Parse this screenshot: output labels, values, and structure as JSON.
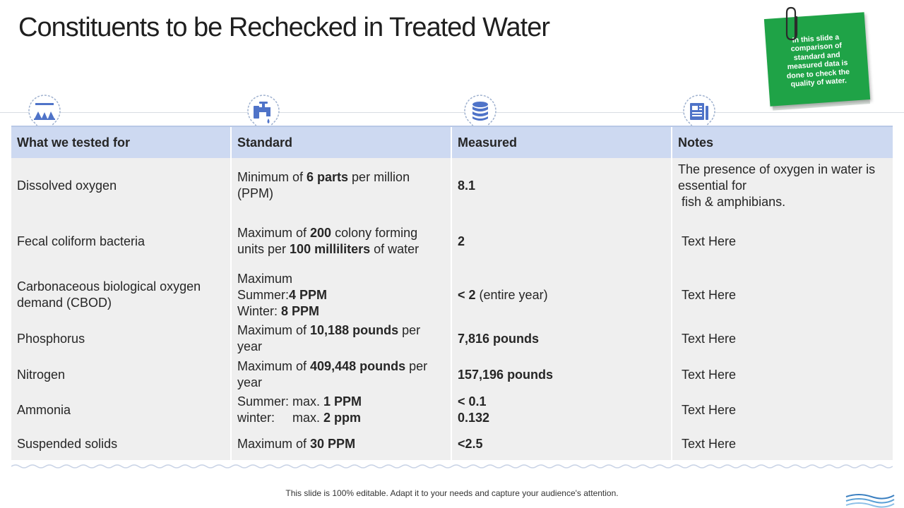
{
  "slide": {
    "title": "Constituents to be Rechecked in Treated Water",
    "note_card": "In this slide a comparison of standard and measured data is done to check the quality of water.",
    "footer": "This slide is 100% editable. Adapt it to your needs and capture your audience's attention."
  },
  "icons": [
    "lab-flasks-icon",
    "water-tap-icon",
    "database-stack-icon",
    "document-notes-icon"
  ],
  "colors": {
    "header_bg": "#cdd9f1",
    "row_bg": "#efefef",
    "note_card_bg": "#1fa347",
    "icon_blue": "#4f73c8"
  },
  "table": {
    "headers": [
      "What we tested for",
      "Standard",
      "Measured",
      "Notes"
    ],
    "rows": [
      {
        "tested": [
          "Dissolved oxygen"
        ],
        "standard": [
          [
            {
              "t": "Minimum of "
            },
            {
              "t": "6 parts",
              "b": true
            },
            {
              "t": " per million"
            }
          ],
          [
            {
              "t": "(PPM)"
            }
          ]
        ],
        "measured": [
          [
            {
              "t": "8.1",
              "b": true
            }
          ]
        ],
        "notes": [
          "The presence of oxygen in water is",
          "essential for",
          " fish & amphibians."
        ]
      },
      {
        "tested": [
          "Fecal coliform bacteria"
        ],
        "standard": [
          [
            {
              "t": "Maximum of "
            },
            {
              "t": "200",
              "b": true
            },
            {
              "t": " colony forming"
            }
          ],
          [
            {
              "t": "units per "
            },
            {
              "t": "100 milliliters",
              "b": true
            },
            {
              "t": " of water"
            }
          ]
        ],
        "measured": [
          [
            {
              "t": "2",
              "b": true
            }
          ]
        ],
        "notes": [
          " Text Here"
        ]
      },
      {
        "tested": [
          "Carbonaceous biological oxygen",
          "demand (CBOD)"
        ],
        "standard": [
          [
            {
              "t": "Maximum"
            }
          ],
          [
            {
              "t": "Summer:"
            },
            {
              "t": "4 PPM",
              "b": true
            }
          ],
          [
            {
              "t": "Winter: "
            },
            {
              "t": "8 PPM",
              "b": true
            }
          ]
        ],
        "measured": [
          [
            {
              "t": "< 2",
              "b": true
            },
            {
              "t": " (entire year)"
            }
          ]
        ],
        "notes": [
          " Text Here"
        ]
      },
      {
        "tested": [
          "Phosphorus"
        ],
        "standard": [
          [
            {
              "t": "Maximum of "
            },
            {
              "t": "10,188 pounds",
              "b": true
            },
            {
              "t": " per"
            }
          ],
          [
            {
              "t": "year"
            }
          ]
        ],
        "measured": [
          [
            {
              "t": "7,816 pounds",
              "b": true
            }
          ]
        ],
        "notes": [
          " Text Here"
        ]
      },
      {
        "tested": [
          "Nitrogen"
        ],
        "standard": [
          [
            {
              "t": "Maximum of "
            },
            {
              "t": "409,448 pounds",
              "b": true
            },
            {
              "t": " per"
            }
          ],
          [
            {
              "t": "year"
            }
          ]
        ],
        "measured": [
          [
            {
              "t": "157,196 pounds",
              "b": true
            }
          ]
        ],
        "notes": [
          " Text Here"
        ]
      },
      {
        "tested": [
          "Ammonia"
        ],
        "standard": [
          [
            {
              "t": "Summer: max. "
            },
            {
              "t": "1 PPM",
              "b": true
            }
          ],
          [
            {
              "t": "winter:     max. "
            },
            {
              "t": "2 ppm",
              "b": true
            }
          ]
        ],
        "measured": [
          [
            {
              "t": "< 0.1",
              "b": true
            }
          ],
          [
            {
              "t": "0.132",
              "b": true
            }
          ]
        ],
        "notes": [
          " Text Here"
        ]
      },
      {
        "tested": [
          "Suspended solids"
        ],
        "standard": [
          [
            {
              "t": "Maximum of "
            },
            {
              "t": "30 PPM",
              "b": true
            }
          ]
        ],
        "measured": [
          [
            {
              "t": "<2.5",
              "b": true
            }
          ]
        ],
        "notes": [
          " Text Here"
        ]
      }
    ]
  }
}
